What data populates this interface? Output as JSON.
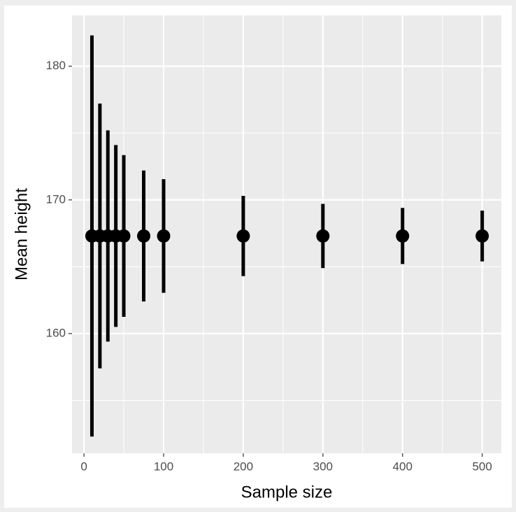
{
  "chart_data": {
    "type": "errorbar",
    "x_label": "Sample size",
    "y_label": "Mean height",
    "x": [
      10,
      20,
      30,
      40,
      50,
      75,
      100,
      200,
      300,
      400,
      500
    ],
    "values": [
      167.3,
      167.3,
      167.3,
      167.3,
      167.3,
      167.3,
      167.3,
      167.3,
      167.3,
      167.3,
      167.3
    ],
    "errors": [
      15.0,
      9.9,
      7.9,
      6.8,
      6.05,
      4.9,
      4.25,
      3.0,
      2.4,
      2.1,
      1.9
    ],
    "color": "#000000",
    "xlim": [
      -15,
      524
    ],
    "xticks": [
      0,
      100,
      200,
      300,
      400,
      500
    ],
    "xminor": [
      50,
      150,
      250,
      350,
      450
    ],
    "ylim": [
      151.05,
      183.8
    ],
    "yticks": [
      160,
      170,
      180
    ],
    "yminor": [
      155,
      165,
      175
    ],
    "grid": true
  }
}
